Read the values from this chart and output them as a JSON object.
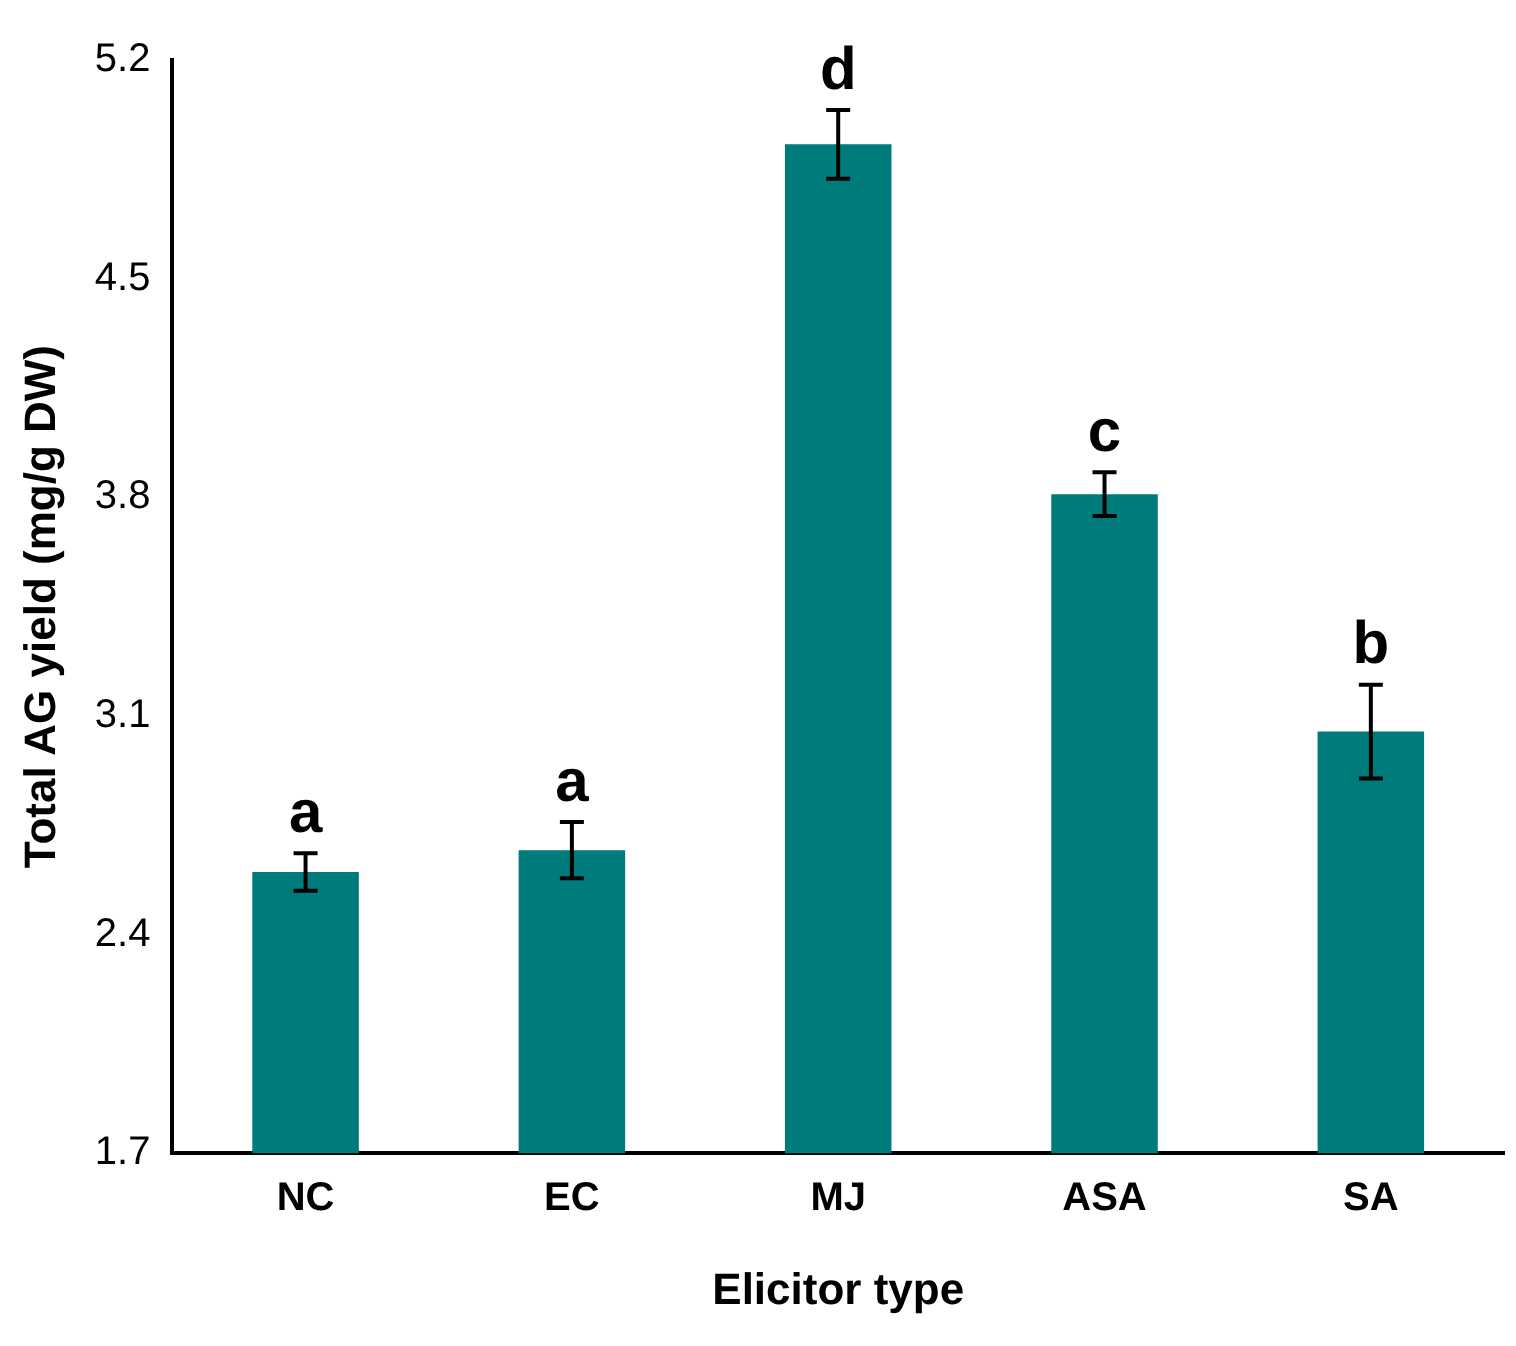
{
  "chart_data": {
    "type": "bar",
    "xlabel": "Elicitor type",
    "ylabel": "Total AG yield (mg/g DW)",
    "categories": [
      "NC",
      "EC",
      "MJ",
      "ASA",
      "SA"
    ],
    "values": [
      2.6,
      2.67,
      4.93,
      3.81,
      3.05
    ],
    "errors": [
      0.06,
      0.09,
      0.11,
      0.07,
      0.15
    ],
    "color": "#007b7b",
    "ylim": [
      1.7,
      5.2
    ],
    "yticks": [
      1.7,
      2.4,
      3.1,
      3.8,
      4.5,
      5.2
    ],
    "grid": false,
    "legend": false,
    "annotations": [
      {
        "text": "a",
        "x": "NC",
        "y": 2.66
      },
      {
        "text": "a",
        "x": "EC",
        "y": 2.76
      },
      {
        "text": "d",
        "x": "MJ",
        "y": 5.04
      },
      {
        "text": "c",
        "x": "ASA",
        "y": 3.88
      },
      {
        "text": "b",
        "x": "SA",
        "y": 3.2
      }
    ]
  }
}
